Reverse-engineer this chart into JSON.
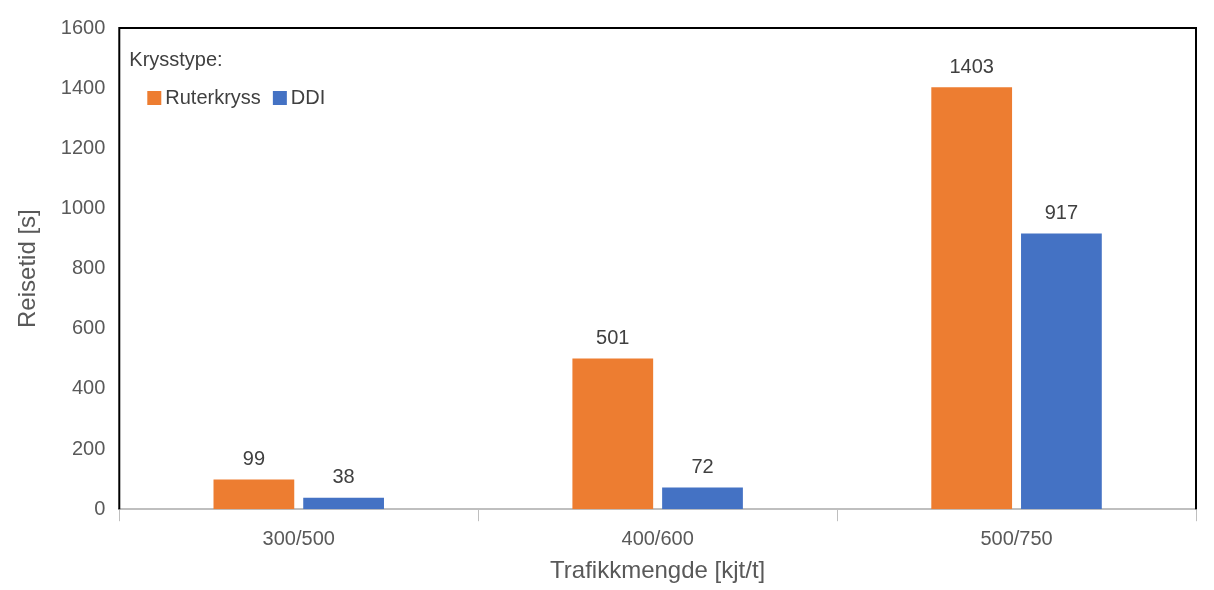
{
  "chart_data": {
    "type": "bar",
    "xlabel": "Trafikkmengde [kjt/t]",
    "ylabel": "Reisetid [s]",
    "legend_title": "Krysstype:",
    "categories": [
      "300/500",
      "400/600",
      "500/750"
    ],
    "series": [
      {
        "name": "Ruterkryss",
        "color": "#ed7d31",
        "values": [
          99,
          501,
          1403
        ]
      },
      {
        "name": "DDI",
        "color": "#4472c4",
        "values": [
          38,
          72,
          917
        ]
      }
    ],
    "ylim": [
      0,
      1600
    ],
    "yticks": [
      0,
      200,
      400,
      600,
      800,
      1000,
      1200,
      1400,
      1600
    ],
    "grid": false,
    "legend": "top left",
    "data_labels": true
  }
}
